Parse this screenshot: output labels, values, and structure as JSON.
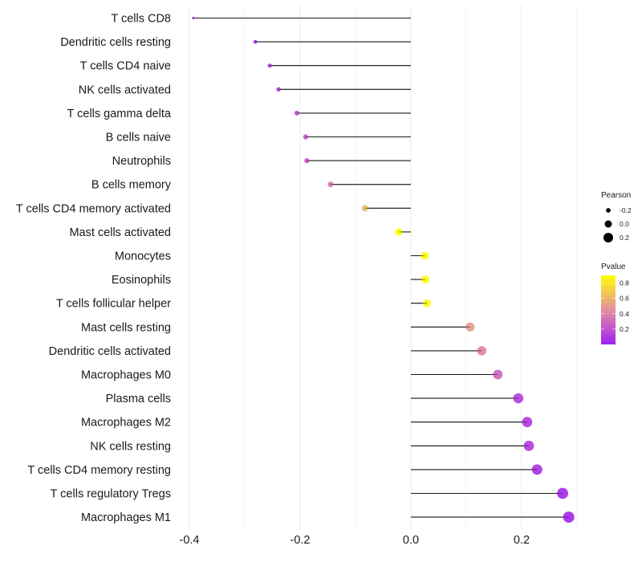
{
  "chart_data": {
    "type": "lollipop",
    "title": "",
    "xlabel": "",
    "ylabel": "",
    "xlim": [
      -0.41,
      0.3
    ],
    "x_ticks": [
      -0.4,
      -0.2,
      0.0,
      0.2
    ],
    "x_tick_labels": [
      "-0.4",
      "-0.2",
      "0.0",
      "0.2"
    ],
    "grid": true,
    "categories": [
      "T cells CD8",
      "Dendritic cells resting",
      "T cells CD4 naive",
      "NK cells activated",
      "T cells gamma delta",
      "B cells naive",
      "Neutrophils",
      "B cells memory",
      "T cells CD4 memory activated",
      "Mast cells activated",
      "Monocytes",
      "Eosinophils",
      "T cells follicular helper",
      "Mast cells resting",
      "Dendritic cells activated",
      "Macrophages M0",
      "Plasma cells",
      "Macrophages M2",
      "NK cells resting",
      "T cells CD4 memory resting",
      "T cells regulatory  Tregs",
      "Macrophages M1"
    ],
    "series": [
      {
        "name": "Pearson",
        "values": [
          -0.393,
          -0.281,
          -0.255,
          -0.239,
          -0.206,
          -0.19,
          -0.188,
          -0.145,
          -0.083,
          -0.022,
          0.025,
          0.026,
          0.029,
          0.107,
          0.128,
          0.157,
          0.194,
          0.21,
          0.213,
          0.228,
          0.274,
          0.285
        ]
      },
      {
        "name": "Pvalue",
        "values": [
          0.0,
          0.05,
          0.1,
          0.12,
          0.17,
          0.2,
          0.21,
          0.35,
          0.62,
          0.9,
          0.88,
          0.88,
          0.87,
          0.5,
          0.4,
          0.28,
          0.12,
          0.1,
          0.1,
          0.07,
          0.03,
          0.02
        ]
      }
    ],
    "legend": {
      "size": {
        "title": "Pearson",
        "labels": [
          "-0.2",
          "0.0",
          "0.2"
        ],
        "values": [
          -0.2,
          0.0,
          0.2
        ]
      },
      "color": {
        "title": "Pvalue",
        "labels": [
          "0.8",
          "0.6",
          "0.4",
          "0.2"
        ],
        "values": [
          0.8,
          0.6,
          0.4,
          0.2
        ],
        "range": [
          0.0,
          0.9
        ],
        "low_color": "#a020f0",
        "mid_color": "#e48fa0",
        "high_color": "#ffff00"
      },
      "placement": "right"
    },
    "colors": {
      "segment": "#1a1a1a",
      "grid": "#ebebeb"
    }
  }
}
